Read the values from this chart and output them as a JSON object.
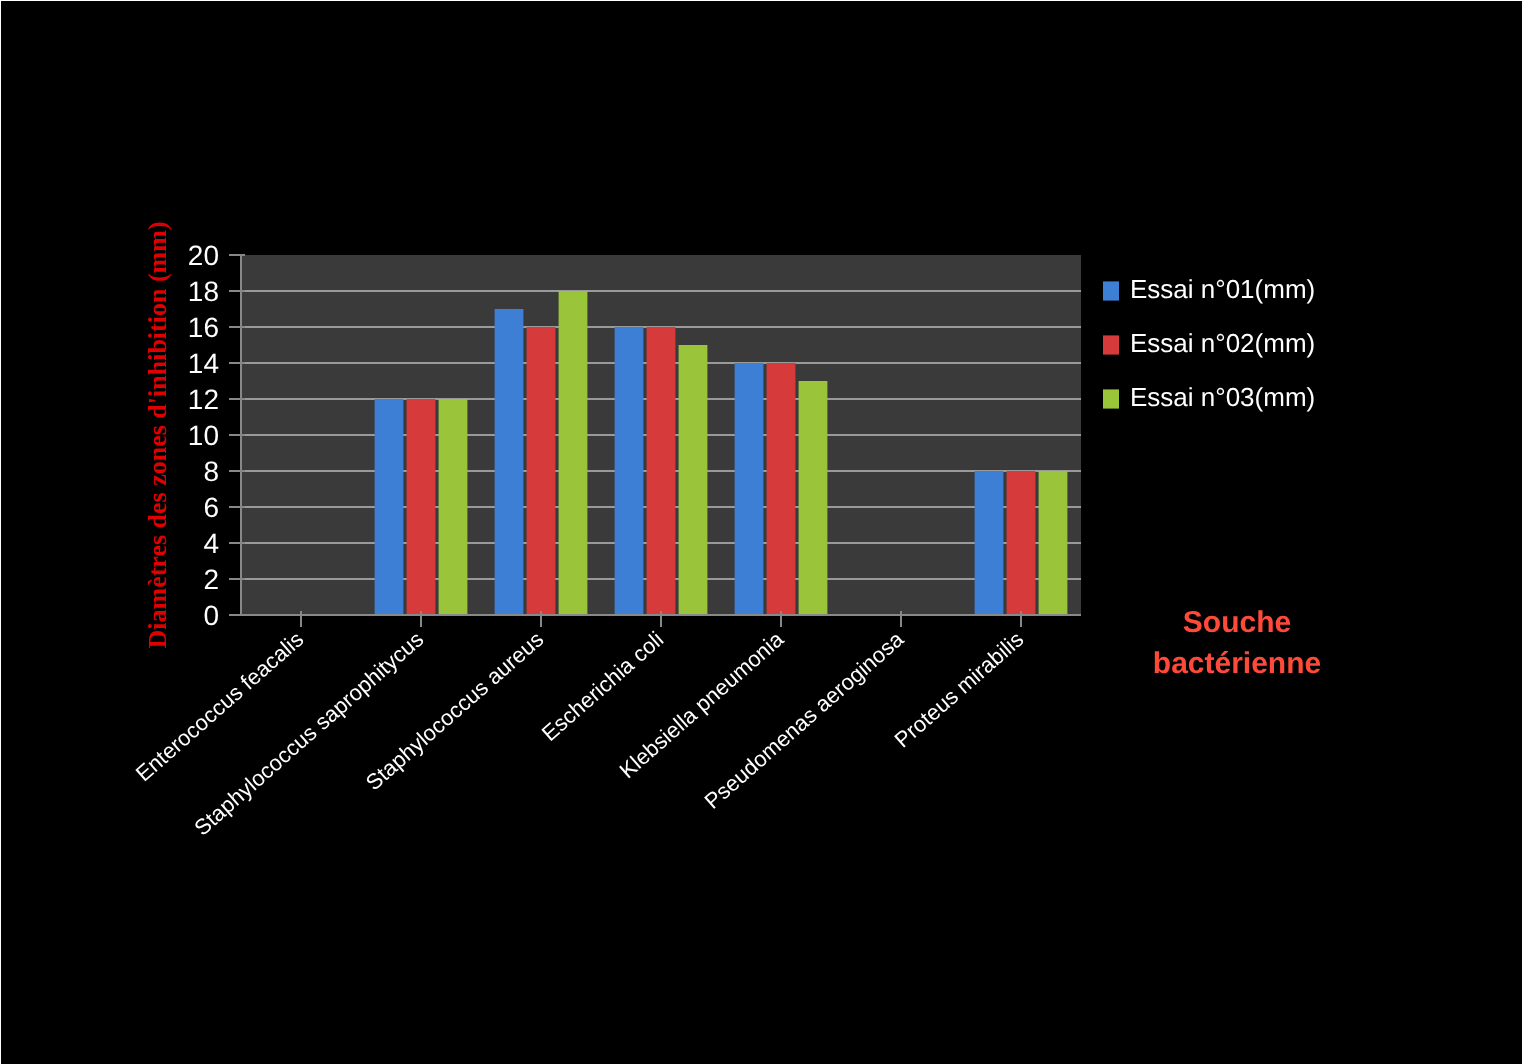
{
  "chart_data": {
    "type": "bar",
    "xlabel": "Souche bactérienne",
    "ylabel": "Diamètres des zones d'inhibition (mm)",
    "categories": [
      "Enterococcus feacalis",
      "Staphylococcus saprophitycus",
      "Staphylococcus aureus",
      "Escherichia coli",
      "Klebsiella pneumonia",
      "Pseudomenas aeroginosa",
      "Proteus mirabilis"
    ],
    "series": [
      {
        "name": "Essai n°01(mm)",
        "color": "#3d7fd4",
        "values": [
          0,
          12,
          17,
          16,
          14,
          0,
          8
        ]
      },
      {
        "name": "Essai n°02(mm)",
        "color": "#d63a3a",
        "values": [
          0,
          12,
          16,
          16,
          14,
          0,
          8
        ]
      },
      {
        "name": "Essai n°03(mm)",
        "color": "#9ac43a",
        "values": [
          0,
          12,
          18,
          15,
          13,
          0,
          8
        ]
      }
    ],
    "ylim": [
      0,
      20
    ],
    "yticks": [
      0,
      2,
      4,
      6,
      8,
      10,
      12,
      14,
      16,
      18,
      20
    ],
    "grid": "y",
    "legend": "right"
  }
}
